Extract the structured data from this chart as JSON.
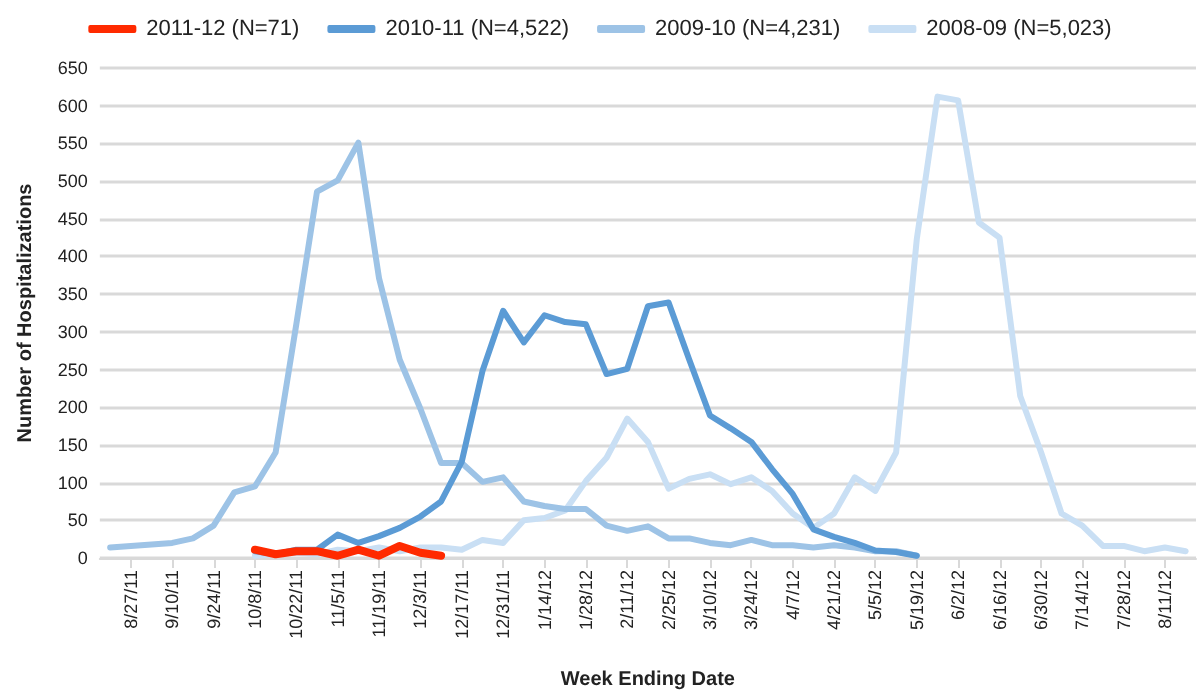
{
  "chart_data": {
    "type": "line",
    "xlabel": "Week Ending Date",
    "ylabel": "Number of Hospitalizations",
    "categories": [
      null,
      "8/27/11",
      null,
      "9/10/11",
      null,
      "9/24/11",
      null,
      "10/8/11",
      null,
      "10/22/11",
      null,
      "11/5/11",
      null,
      "11/19/11",
      null,
      "12/3/11",
      null,
      "12/17/11",
      null,
      "12/31/11",
      null,
      "1/14/12",
      null,
      "1/28/12",
      null,
      "2/11/12",
      null,
      "2/25/12",
      null,
      "3/10/12",
      null,
      "3/24/12",
      null,
      "4/7/12",
      null,
      "4/21/12",
      null,
      "5/5/12",
      null,
      "5/19/12",
      null,
      "6/2/12",
      null,
      "6/16/12",
      null,
      "6/30/12",
      null,
      "7/14/12",
      null,
      "7/28/12",
      null,
      "8/11/12",
      null
    ],
    "series": [
      {
        "name": "2011-12 (N=71)",
        "color": "#ff2a00",
        "values": [
          null,
          null,
          null,
          null,
          null,
          null,
          null,
          11,
          5,
          9,
          9,
          3,
          11,
          3,
          16,
          7,
          3,
          null,
          null,
          null,
          null,
          null,
          null,
          null,
          null,
          null,
          null,
          null,
          null,
          null,
          null,
          null,
          null,
          null,
          null,
          null,
          null,
          null,
          null,
          null,
          null,
          null,
          null,
          null,
          null,
          null,
          null,
          null,
          null,
          null,
          null,
          null,
          null
        ]
      },
      {
        "name": "2010-11 (N=4,522)",
        "color": "#5b9bd5",
        "values": [
          null,
          null,
          null,
          null,
          null,
          null,
          null,
          9,
          5,
          11,
          11,
          31,
          20,
          29,
          40,
          55,
          75,
          128,
          248,
          328,
          286,
          322,
          313,
          310,
          244,
          251,
          334,
          339,
          263,
          189,
          172,
          154,
          118,
          85,
          38,
          28,
          20,
          10,
          8,
          3,
          null,
          null,
          null,
          null,
          null,
          null,
          null,
          null,
          null,
          null,
          null,
          null,
          null
        ]
      },
      {
        "name": "2009-10 (N=4,231)",
        "color": "#9dc3e6",
        "values": [
          14,
          16,
          18,
          20,
          26,
          43,
          87,
          95,
          140,
          310,
          486,
          501,
          551,
          371,
          263,
          198,
          126,
          126,
          101,
          107,
          75,
          69,
          65,
          65,
          43,
          36,
          42,
          26,
          26,
          20,
          17,
          24,
          17,
          17,
          14,
          17,
          14,
          9,
          9,
          3,
          null,
          null,
          null,
          null,
          null,
          null,
          null,
          null,
          null,
          null,
          null,
          null,
          null
        ]
      },
      {
        "name": "2008-09 (N=5,023)",
        "color": "#c9dff4",
        "values": [
          null,
          null,
          null,
          null,
          null,
          null,
          null,
          3,
          5,
          7,
          5,
          11,
          9,
          14,
          9,
          14,
          14,
          11,
          24,
          20,
          50,
          53,
          63,
          102,
          133,
          185,
          154,
          92,
          105,
          111,
          98,
          107,
          89,
          59,
          40,
          59,
          107,
          89,
          140,
          423,
          612,
          607,
          445,
          425,
          215,
          141,
          59,
          43,
          16,
          16,
          9,
          14,
          9
        ]
      }
    ],
    "ylim": [
      0,
      650
    ],
    "yticks": [
      0,
      50,
      100,
      150,
      200,
      250,
      300,
      350,
      400,
      450,
      500,
      550,
      600,
      650
    ],
    "grid": "y",
    "legend": "top",
    "marker": "none",
    "line_style": "solid"
  }
}
